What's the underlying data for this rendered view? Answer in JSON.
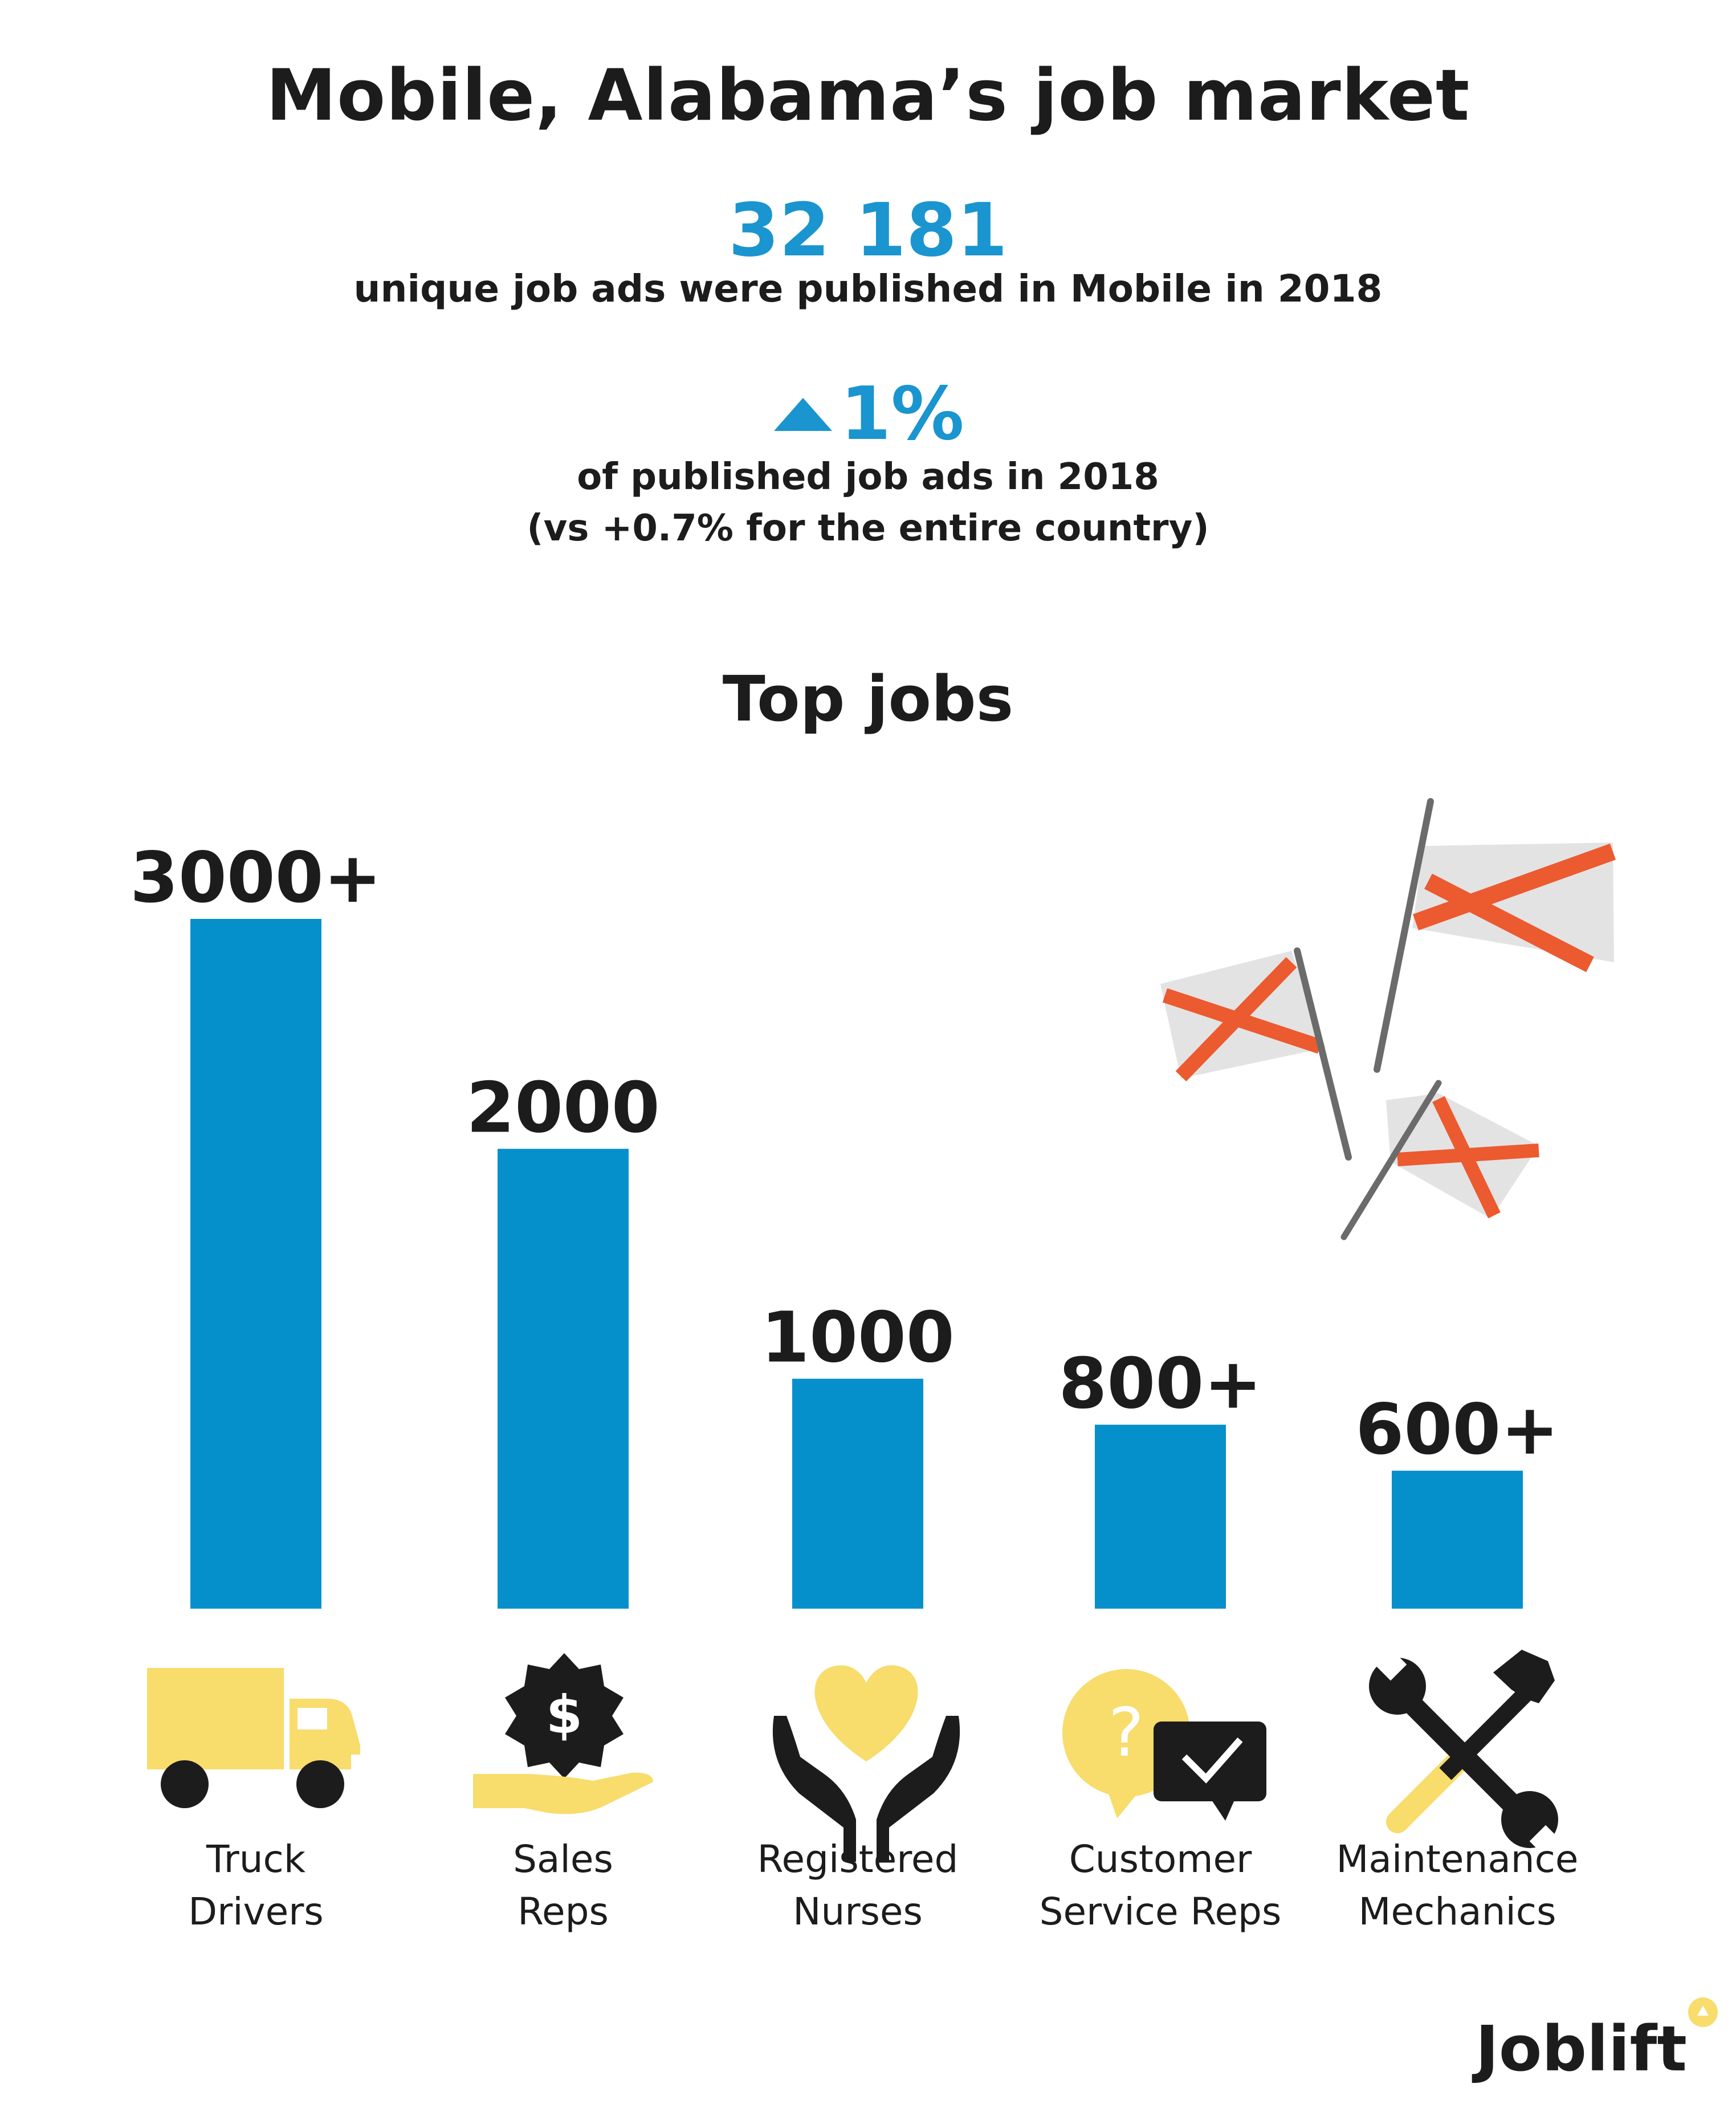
{
  "title": "Mobile, Alabama’s job market",
  "stats": {
    "ads_count": "32 181",
    "ads_caption": "unique job ads were published in Mobile in 2018",
    "growth_value": "1%",
    "growth_line1": "of published job ads in 2018",
    "growth_line2": "(vs +0.7% for the entire country)"
  },
  "chart_data": {
    "type": "bar",
    "title": "Top jobs",
    "categories": [
      [
        "Truck",
        "Drivers"
      ],
      [
        "Sales",
        "Reps"
      ],
      [
        "Registered",
        "Nurses"
      ],
      [
        "Customer",
        "Service Reps"
      ],
      [
        "Maintenance",
        "Mechanics"
      ]
    ],
    "values": [
      3000,
      2000,
      1000,
      800,
      600
    ],
    "value_labels": [
      "3000+",
      "2000",
      "1000",
      "800+",
      "600+"
    ],
    "icons": [
      "truck-icon",
      "money-hand-icon",
      "heart-hands-icon",
      "question-chat-icon",
      "wrench-hammer-icon"
    ],
    "ylim": [
      0,
      3000
    ],
    "grid": false,
    "bar_color": "#0590cb"
  },
  "colors": {
    "accent_blue": "#1a95cf",
    "bar_blue": "#0590cb",
    "icon_yellow": "#f8dc6c",
    "dark": "#1c1c1c",
    "flag_red": "#ec5a30",
    "flag_gray": "#e3e3e3"
  },
  "brand": "Joblift"
}
